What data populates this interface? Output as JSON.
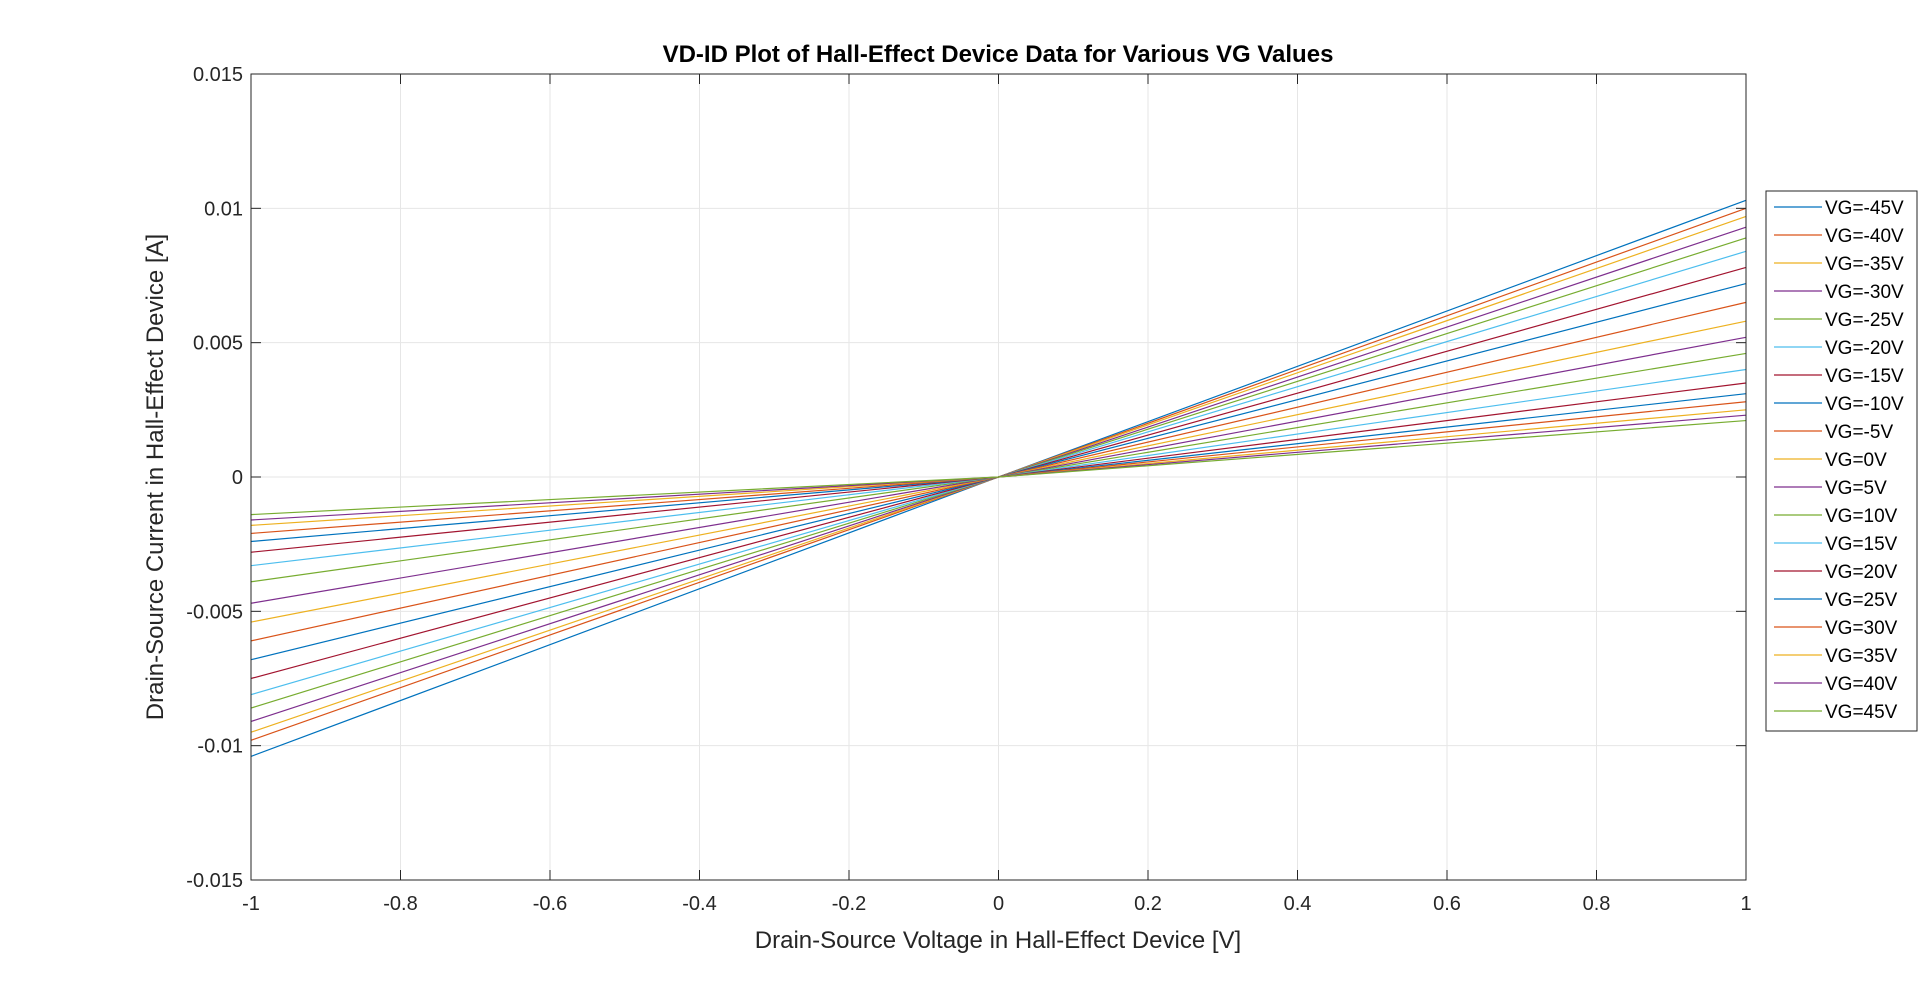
{
  "chart_data": {
    "type": "line",
    "title": "VD-ID Plot of Hall-Effect Device Data for Various VG Values",
    "xlabel": "Drain-Source Voltage in Hall-Effect Device [V]",
    "ylabel": "Drain-Source Current in Hall-Effect Device [A]",
    "xlim": [
      -1,
      1
    ],
    "ylim": [
      -0.015,
      0.015
    ],
    "xticks": [
      "-1",
      "-0.8",
      "-0.6",
      "-0.4",
      "-0.2",
      "0",
      "0.2",
      "0.4",
      "0.6",
      "0.8",
      "1"
    ],
    "xtick_values": [
      -1,
      -0.8,
      -0.6,
      -0.4,
      -0.2,
      0,
      0.2,
      0.4,
      0.6,
      0.8,
      1
    ],
    "yticks": [
      "-0.015",
      "-0.01",
      "-0.005",
      "0",
      "0.005",
      "0.01",
      "0.015"
    ],
    "ytick_values": [
      -0.015,
      -0.01,
      -0.005,
      0,
      0.005,
      0.01,
      0.015
    ],
    "grid": true,
    "legend_position": "outside-right",
    "series": [
      {
        "name": "VG=-45V",
        "color": "#0072BD",
        "x": [
          -1,
          0,
          1
        ],
        "y": [
          -0.0104,
          0,
          0.0103
        ]
      },
      {
        "name": "VG=-40V",
        "color": "#D95319",
        "x": [
          -1,
          0,
          1
        ],
        "y": [
          -0.0098,
          0,
          0.01
        ]
      },
      {
        "name": "VG=-35V",
        "color": "#EDB120",
        "x": [
          -1,
          0,
          1
        ],
        "y": [
          -0.0095,
          0,
          0.0097
        ]
      },
      {
        "name": "VG=-30V",
        "color": "#7E2F8E",
        "x": [
          -1,
          0,
          1
        ],
        "y": [
          -0.0091,
          0,
          0.0093
        ]
      },
      {
        "name": "VG=-25V",
        "color": "#77AC30",
        "x": [
          -1,
          0,
          1
        ],
        "y": [
          -0.0086,
          0,
          0.0089
        ]
      },
      {
        "name": "VG=-20V",
        "color": "#4DBEEE",
        "x": [
          -1,
          0,
          1
        ],
        "y": [
          -0.0081,
          0,
          0.0084
        ]
      },
      {
        "name": "VG=-15V",
        "color": "#A2142F",
        "x": [
          -1,
          0,
          1
        ],
        "y": [
          -0.0075,
          0,
          0.0078
        ]
      },
      {
        "name": "VG=-10V",
        "color": "#0072BD",
        "x": [
          -1,
          0,
          1
        ],
        "y": [
          -0.0068,
          0,
          0.0072
        ]
      },
      {
        "name": "VG=-5V",
        "color": "#D95319",
        "x": [
          -1,
          0,
          1
        ],
        "y": [
          -0.0061,
          0,
          0.0065
        ]
      },
      {
        "name": "VG=0V",
        "color": "#EDB120",
        "x": [
          -1,
          0,
          1
        ],
        "y": [
          -0.0054,
          0,
          0.0058
        ]
      },
      {
        "name": "VG=5V",
        "color": "#7E2F8E",
        "x": [
          -1,
          0,
          1
        ],
        "y": [
          -0.0047,
          0,
          0.0052
        ]
      },
      {
        "name": "VG=10V",
        "color": "#77AC30",
        "x": [
          -1,
          0,
          1
        ],
        "y": [
          -0.0039,
          0,
          0.0046
        ]
      },
      {
        "name": "VG=15V",
        "color": "#4DBEEE",
        "x": [
          -1,
          0,
          1
        ],
        "y": [
          -0.0033,
          0,
          0.004
        ]
      },
      {
        "name": "VG=20V",
        "color": "#A2142F",
        "x": [
          -1,
          0,
          1
        ],
        "y": [
          -0.0028,
          0,
          0.0035
        ]
      },
      {
        "name": "VG=25V",
        "color": "#0072BD",
        "x": [
          -1,
          0,
          1
        ],
        "y": [
          -0.0024,
          0,
          0.0031
        ]
      },
      {
        "name": "VG=30V",
        "color": "#D95319",
        "x": [
          -1,
          0,
          1
        ],
        "y": [
          -0.0021,
          0,
          0.0028
        ]
      },
      {
        "name": "VG=35V",
        "color": "#EDB120",
        "x": [
          -1,
          0,
          1
        ],
        "y": [
          -0.0018,
          0,
          0.0025
        ]
      },
      {
        "name": "VG=40V",
        "color": "#7E2F8E",
        "x": [
          -1,
          0,
          1
        ],
        "y": [
          -0.0016,
          0,
          0.0023
        ]
      },
      {
        "name": "VG=45V",
        "color": "#77AC30",
        "x": [
          -1,
          0,
          1
        ],
        "y": [
          -0.0014,
          0,
          0.0021
        ]
      }
    ]
  }
}
